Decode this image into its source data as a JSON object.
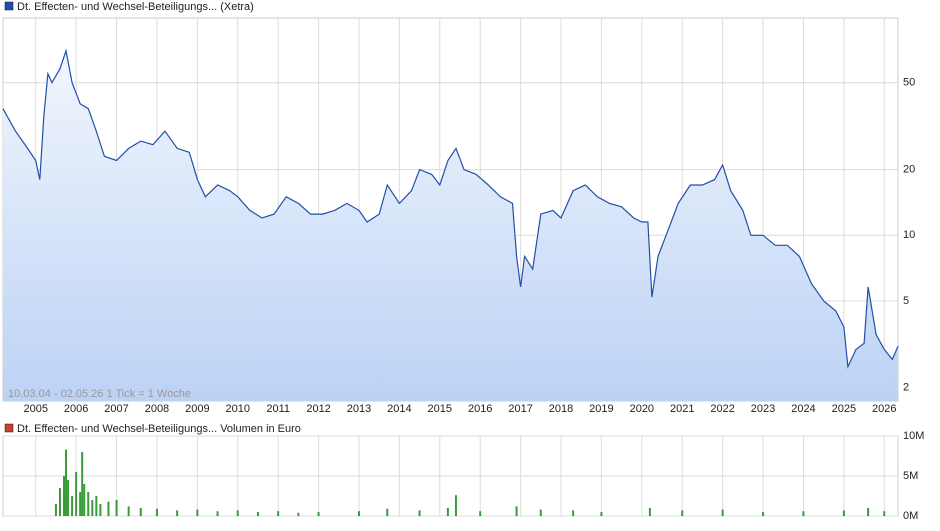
{
  "chart_data": [
    {
      "type": "line",
      "legend": "Dt. Effecten- und Wechsel-Beteiligungs... (Xetra)",
      "annotation": "10.03.04 - 02.05.26   1 Tick = 1 Woche",
      "color": "#2050a8",
      "log_y": true,
      "grid": true,
      "xlim": [
        2004.19,
        2026.34
      ],
      "xticks": [
        2005,
        2006,
        2007,
        2008,
        2009,
        2010,
        2011,
        2012,
        2013,
        2014,
        2015,
        2016,
        2017,
        2018,
        2019,
        2020,
        2021,
        2022,
        2023,
        2024,
        2025,
        2026
      ],
      "ylim": [
        1.74,
        99
      ],
      "yticks": [
        2,
        5,
        10,
        20,
        50
      ],
      "x": [
        2004.19,
        2004.5,
        2004.8,
        2005.0,
        2005.1,
        2005.2,
        2005.3,
        2005.4,
        2005.6,
        2005.75,
        2005.9,
        2006.1,
        2006.3,
        2006.5,
        2006.7,
        2007.0,
        2007.3,
        2007.6,
        2007.9,
        2008.2,
        2008.5,
        2008.8,
        2009.0,
        2009.2,
        2009.5,
        2009.8,
        2010.0,
        2010.3,
        2010.6,
        2010.9,
        2011.2,
        2011.5,
        2011.8,
        2012.1,
        2012.4,
        2012.7,
        2013.0,
        2013.2,
        2013.5,
        2013.7,
        2014.0,
        2014.3,
        2014.5,
        2014.8,
        2015.0,
        2015.2,
        2015.4,
        2015.6,
        2015.9,
        2016.2,
        2016.5,
        2016.8,
        2016.9,
        2017.0,
        2017.1,
        2017.3,
        2017.5,
        2017.8,
        2018.0,
        2018.3,
        2018.6,
        2018.9,
        2019.2,
        2019.5,
        2019.8,
        2020.0,
        2020.15,
        2020.25,
        2020.4,
        2020.6,
        2020.9,
        2021.2,
        2021.5,
        2021.8,
        2022.0,
        2022.2,
        2022.5,
        2022.7,
        2023.0,
        2023.3,
        2023.6,
        2023.9,
        2024.2,
        2024.5,
        2024.8,
        2025.0,
        2025.1,
        2025.3,
        2025.5,
        2025.6,
        2025.8,
        2026.0,
        2026.2,
        2026.34
      ],
      "values": [
        38,
        30,
        25,
        22,
        18,
        35,
        55,
        50,
        58,
        70,
        50,
        40,
        38,
        30,
        23,
        22,
        25,
        27,
        26,
        30,
        25,
        24,
        18,
        15,
        17,
        16,
        15,
        13,
        12,
        12.5,
        15,
        14,
        12.5,
        12.5,
        13,
        14,
        13,
        11.5,
        12.5,
        17,
        14,
        16,
        20,
        19,
        17,
        22,
        25,
        20,
        19,
        17,
        15,
        14,
        8,
        5.8,
        8,
        7,
        12.5,
        13,
        12,
        16,
        17,
        15,
        14,
        13.5,
        12,
        11.5,
        11.5,
        5.2,
        8,
        10,
        14,
        17,
        17,
        18,
        21,
        16,
        13,
        10,
        10,
        9,
        9,
        8,
        6,
        5,
        4.5,
        3.8,
        2.5,
        3,
        3.2,
        5.8,
        3.5,
        3,
        2.7,
        3.1
      ]
    },
    {
      "type": "bar",
      "legend": "Dt. Effecten- und Wechsel-Beteiligungs... Volumen in Euro",
      "color": "#3a9a3a",
      "grid": true,
      "xlim": [
        2004.19,
        2026.34
      ],
      "xticks": [
        2005,
        2006,
        2007,
        2008,
        2009,
        2010,
        2011,
        2012,
        2013,
        2014,
        2015,
        2016,
        2017,
        2018,
        2019,
        2020,
        2021,
        2022,
        2023,
        2024,
        2025,
        2026
      ],
      "ylim": [
        0,
        10000000
      ],
      "yticks": [
        {
          "value": 0,
          "label": "0M"
        },
        {
          "value": 5000000,
          "label": "5M"
        },
        {
          "value": 10000000,
          "label": "10M"
        }
      ],
      "x": [
        2005.5,
        2005.6,
        2005.7,
        2005.75,
        2005.8,
        2005.9,
        2006.0,
        2006.1,
        2006.15,
        2006.2,
        2006.3,
        2006.4,
        2006.5,
        2006.6,
        2006.8,
        2007.0,
        2007.3,
        2007.6,
        2008.0,
        2008.5,
        2009.0,
        2009.5,
        2010.0,
        2010.5,
        2011.0,
        2011.5,
        2012.0,
        2013.0,
        2013.7,
        2014.5,
        2015.2,
        2015.4,
        2016.0,
        2016.9,
        2017.5,
        2018.3,
        2019.0,
        2020.2,
        2021.0,
        2022.0,
        2023.0,
        2024.0,
        2025.0,
        2025.6,
        2026.0
      ],
      "values": [
        1500000,
        3500000,
        5000000,
        8300000,
        4500000,
        2500000,
        5500000,
        3000000,
        8000000,
        4000000,
        3000000,
        2000000,
        2500000,
        1500000,
        1800000,
        2000000,
        1200000,
        1000000,
        900000,
        700000,
        800000,
        600000,
        700000,
        500000,
        600000,
        400000,
        500000,
        600000,
        900000,
        700000,
        1000000,
        2600000,
        600000,
        1200000,
        800000,
        700000,
        500000,
        1000000,
        700000,
        800000,
        500000,
        600000,
        700000,
        1000000,
        600000
      ]
    }
  ]
}
